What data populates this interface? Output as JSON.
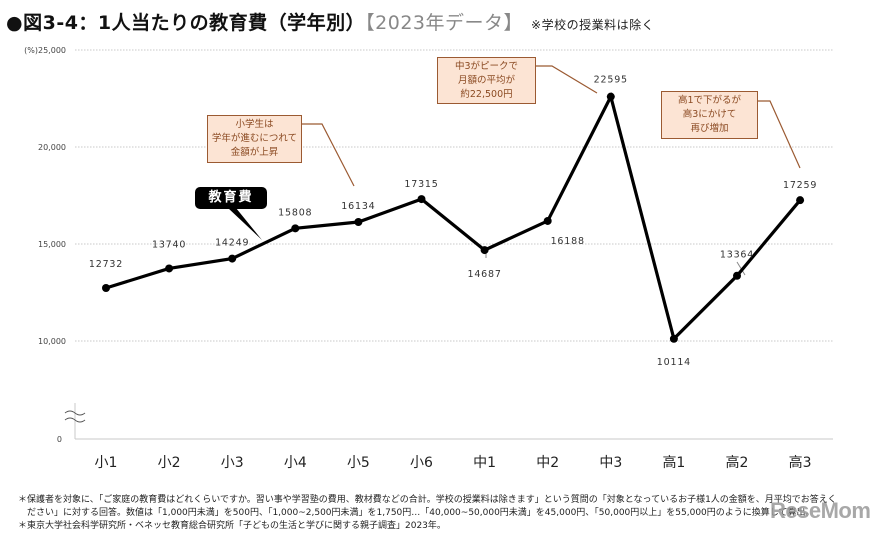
{
  "title": {
    "bullet": "●",
    "main": "図3-4：1人当たりの教育費（学年別）",
    "tag": "【2023年データ】",
    "note": "※学校の授業料は除く"
  },
  "chart_data": {
    "type": "line",
    "title": "図3-4：1人当たりの教育費（学年別）【2023年データ】",
    "subtitle": "※学校の授業料は除く",
    "xlabel": "",
    "ylabel": "(%)",
    "ylim": [
      0,
      25000
    ],
    "axis_break": [
      0,
      10000
    ],
    "grid": true,
    "yticks": [
      {
        "value": 25000,
        "label": "(%)25,000"
      },
      {
        "value": 20000,
        "label": "20,000"
      },
      {
        "value": 15000,
        "label": "15,000"
      },
      {
        "value": 10000,
        "label": "10,000"
      },
      {
        "value": 0,
        "label": "0"
      }
    ],
    "categories": [
      "小1",
      "小2",
      "小3",
      "小4",
      "小5",
      "小6",
      "中1",
      "中2",
      "中3",
      "高1",
      "高2",
      "高3"
    ],
    "series": [
      {
        "name": "教育費",
        "color": "#000000",
        "values": [
          12732,
          13740,
          14249,
          15808,
          16134,
          17315,
          14687,
          16188,
          22595,
          10114,
          13364,
          17259
        ],
        "labels": [
          "12732",
          "13740",
          "14249",
          "15808",
          "16134",
          "17315",
          "14687",
          "16188",
          "22595",
          "10114",
          "13364",
          "17259"
        ]
      }
    ],
    "annotations": [
      {
        "target": "小5",
        "lines": [
          "小学生は",
          "学年が進むにつれて",
          "金額が上昇"
        ]
      },
      {
        "target": "中3",
        "lines": [
          "中3がピークで",
          "月額の平均が",
          "約22,500円"
        ]
      },
      {
        "target": "高3",
        "lines": [
          "高1で下がるが",
          "高3にかけて",
          "再び増加"
        ]
      }
    ],
    "legend": "inline-label"
  },
  "colors": {
    "line": "#000000",
    "callout_fill": "#fce4d4",
    "callout_border": "#9b5a32",
    "callout_text": "#8b4a22",
    "grid": "#c8c8c8"
  },
  "footnotes": [
    "＊保護者を対象に、「ご家庭の教育費はどれくらいですか。習い事や学習塾の費用、教材費などの合計。学校の授業料は除きます」という質問の「対象となっているお子様1人の金額を、月平均でお答えく",
    "　ださい」に対する回答。数値は「1,000円未満」を500円、「1,000~2,500円未満」を1,750円…「40,000~50,000円未満」を45,000円、「50,000円以上」を55,000円のように換算して算出。",
    "＊東京大学社会科学研究所・ベネッセ教育総合研究所「子どもの生活と学びに関する親子調査」2023年。"
  ],
  "watermark": "ReseMom"
}
